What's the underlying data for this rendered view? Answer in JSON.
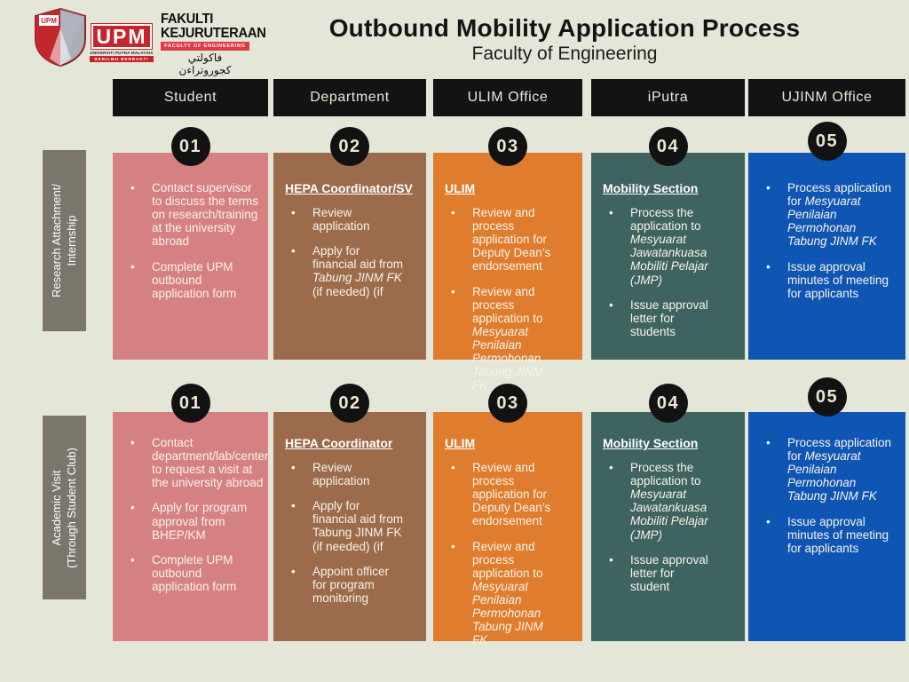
{
  "page": {
    "title": "Outbound Mobility Application Process",
    "subtitle": "Faculty of Engineering"
  },
  "logos": {
    "crest_label": "UPM",
    "wordmark": "UPM",
    "wordmark_sub": "UNIVERSITI PUTRA MALAYSIA",
    "wordmark_tagline": "BERILMU BERBAKTI",
    "faculty_name_line1": "FAKULTI",
    "faculty_name_line2": "KEJURUTERAAN",
    "faculty_sub": "FACULTY OF ENGINEERING",
    "faculty_arabic": "فاكولتي كجوروتراءن"
  },
  "columns": [
    "Student",
    "Department",
    "ULIM Office",
    "iPutra",
    "UJINM Office"
  ],
  "colors": {
    "background": "#e4e6d8",
    "header_bar": "#131313",
    "step_badge": "#121212",
    "row_label": "#7b766b",
    "student": "#d68181",
    "department": "#9c6b4c",
    "ulim": "#e07c2d",
    "iputra": "#3f6360",
    "ujinm": "#0f55b4"
  },
  "rows": [
    {
      "label_lines": [
        "Research Attachment/",
        "Internship"
      ],
      "cells": [
        {
          "step": "01",
          "heading": null,
          "bullets": [
            [
              {
                "t": "Contact supervisor to discuss the terms on research/training at the university abroad"
              }
            ],
            [
              {
                "t": "Complete UPM outbound application form"
              }
            ]
          ]
        },
        {
          "step": "02",
          "heading": "HEPA Coordinator/SV",
          "bullets": [
            [
              {
                "t": "Review application"
              }
            ],
            [
              {
                "t": "Apply for financial aid from "
              },
              {
                "t": "Tabung JINM FK",
                "i": true
              },
              {
                "t": " (if needed) (if"
              }
            ]
          ]
        },
        {
          "step": "03",
          "heading": "ULIM",
          "bullets": [
            [
              {
                "t": "Review and process application for Deputy Dean’s endorsement"
              }
            ],
            [
              {
                "t": "Review and process application to "
              },
              {
                "t": "Mesyuarat Penilaian Permohonan Tabung JINM FK",
                "i": true
              }
            ]
          ]
        },
        {
          "step": "04",
          "heading": "Mobility Section",
          "bullets": [
            [
              {
                "t": "Process the application to "
              },
              {
                "t": "Mesyuarat Jawatankuasa Mobiliti Pelajar (JMP)",
                "i": true
              }
            ],
            [
              {
                "t": "Issue approval letter for students"
              }
            ]
          ]
        },
        {
          "step": "05",
          "heading": null,
          "bullets": [
            [
              {
                "t": "Process application for "
              },
              {
                "t": "Mesyuarat Penilaian Permohonan Tabung JINM FK",
                "i": true
              }
            ],
            [
              {
                "t": "Issue approval minutes of meeting for applicants"
              }
            ]
          ]
        }
      ]
    },
    {
      "label_lines": [
        "Academic Visit",
        "(Through Student Club)"
      ],
      "cells": [
        {
          "step": "01",
          "heading": null,
          "bullets": [
            [
              {
                "t": "Contact department/lab/center to request a visit at the university abroad"
              }
            ],
            [
              {
                "t": "Apply for program approval from BHEP/KM"
              }
            ],
            [
              {
                "t": "Complete UPM outbound application form"
              }
            ]
          ]
        },
        {
          "step": "02",
          "heading": "HEPA Coordinator",
          "bullets": [
            [
              {
                "t": "Review application"
              }
            ],
            [
              {
                "t": "Apply for financial aid from Tabung JINM FK (if needed) (if"
              }
            ],
            [
              {
                "t": "Appoint officer for program monitoring"
              }
            ]
          ]
        },
        {
          "step": "03",
          "heading": "ULIM",
          "bullets": [
            [
              {
                "t": "Review and process application for Deputy Dean’s endorsement"
              }
            ],
            [
              {
                "t": "Review and process application to "
              },
              {
                "t": "Mesyuarat Penilaian Permohonan Tabung JINM FK",
                "i": true
              }
            ]
          ]
        },
        {
          "step": "04",
          "heading": "Mobility Section",
          "bullets": [
            [
              {
                "t": "Process the application to "
              },
              {
                "t": "Mesyuarat Jawatankuasa Mobiliti Pelajar (JMP)",
                "i": true
              }
            ],
            [
              {
                "t": "Issue approval letter for student"
              }
            ]
          ]
        },
        {
          "step": "05",
          "heading": null,
          "bullets": [
            [
              {
                "t": "Process application for "
              },
              {
                "t": "Mesyuarat Penilaian Permohonan Tabung JINM FK",
                "i": true
              }
            ],
            [
              {
                "t": "Issue approval minutes of meeting for applicants"
              }
            ]
          ]
        }
      ]
    }
  ]
}
